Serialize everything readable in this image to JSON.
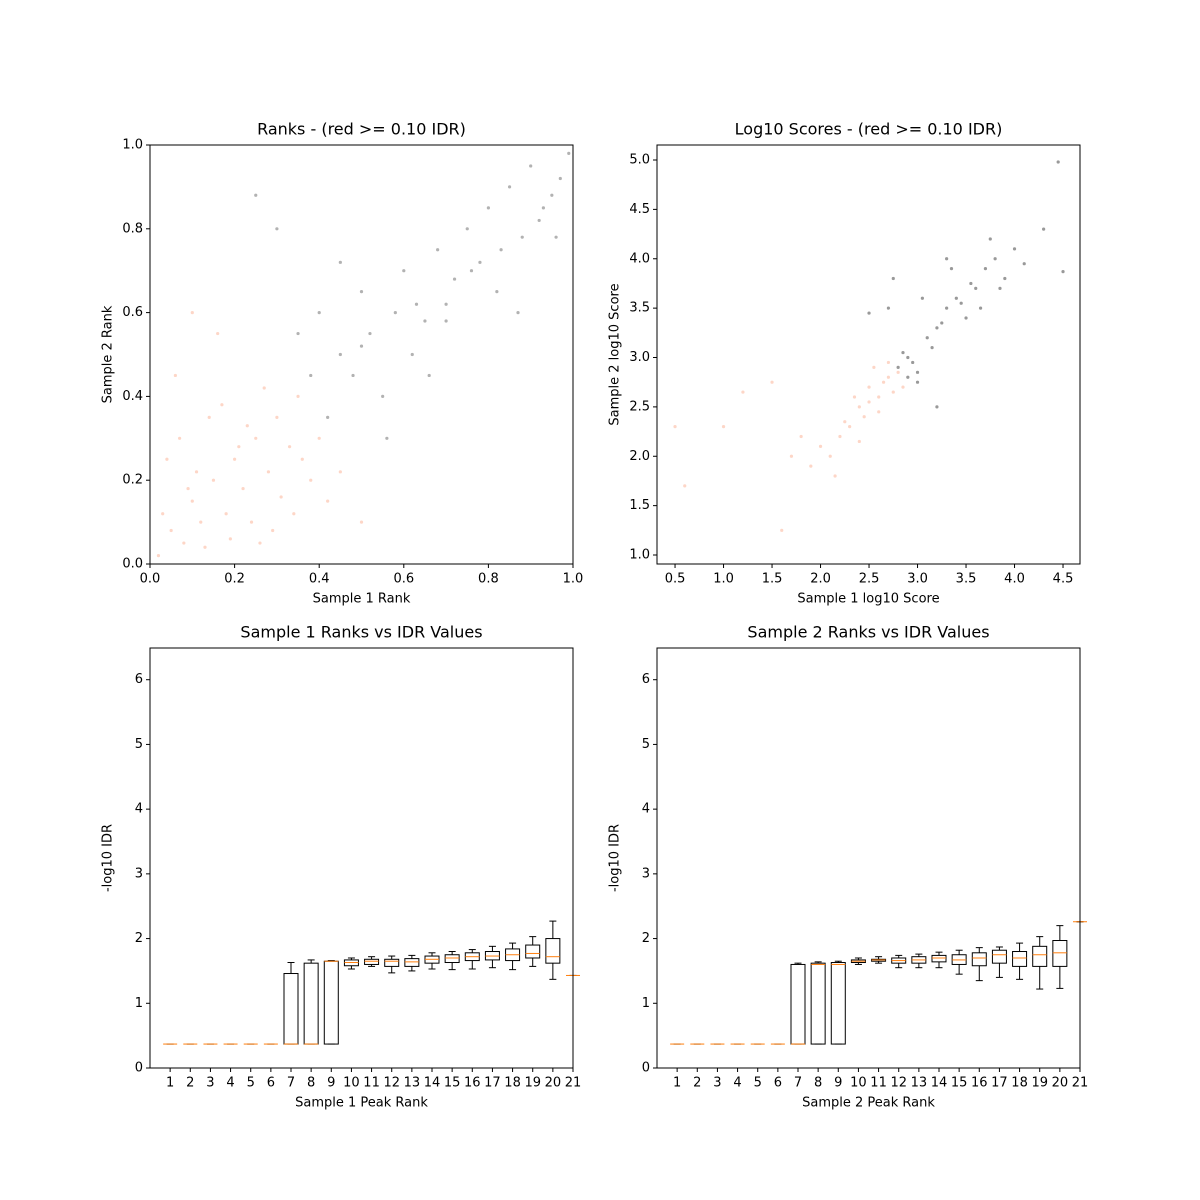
{
  "chart_data": [
    {
      "type": "scatter",
      "title": "Ranks - (red >= 0.10 IDR)",
      "x_label": "Sample 1 Rank",
      "y_label": "Sample 2 Rank",
      "xlim": [
        0,
        1
      ],
      "ylim": [
        0,
        1
      ],
      "xticks": [
        {
          "value": 0,
          "label": "0.0"
        },
        {
          "value": 0.2,
          "label": "0.2"
        },
        {
          "value": 0.4,
          "label": "0.4"
        },
        {
          "value": 0.6,
          "label": "0.6"
        },
        {
          "value": 0.8,
          "label": "0.8"
        },
        {
          "value": 1,
          "label": "1.0"
        }
      ],
      "yticks": [
        {
          "value": 0,
          "label": "0.0"
        },
        {
          "value": 0.2,
          "label": "0.2"
        },
        {
          "value": 0.4,
          "label": "0.4"
        },
        {
          "value": 0.6,
          "label": "0.6"
        },
        {
          "value": 0.8,
          "label": "0.8"
        },
        {
          "value": 1,
          "label": "1.0"
        }
      ],
      "series": [
        {
          "color": "#fcbba1",
          "x": [
            0.02,
            0.05,
            0.08,
            0.1,
            0.12,
            0.15,
            0.18,
            0.2,
            0.22,
            0.25,
            0.28,
            0.3,
            0.33,
            0.35,
            0.38,
            0.4,
            0.42,
            0.03,
            0.07,
            0.13,
            0.17,
            0.24,
            0.27,
            0.31,
            0.36,
            0.06,
            0.11,
            0.19,
            0.23,
            0.29,
            0.04,
            0.09,
            0.14,
            0.21,
            0.26,
            0.34,
            0.45,
            0.5,
            0.1,
            0.16
          ],
          "values": [
            0.02,
            0.08,
            0.05,
            0.15,
            0.1,
            0.2,
            0.12,
            0.25,
            0.18,
            0.3,
            0.22,
            0.35,
            0.28,
            0.4,
            0.2,
            0.3,
            0.15,
            0.12,
            0.3,
            0.04,
            0.38,
            0.1,
            0.42,
            0.16,
            0.25,
            0.45,
            0.22,
            0.06,
            0.33,
            0.08,
            0.25,
            0.18,
            0.35,
            0.28,
            0.05,
            0.12,
            0.22,
            0.1,
            0.6,
            0.55
          ]
        },
        {
          "color": "#7f7f7f",
          "x": [
            0.35,
            0.4,
            0.42,
            0.45,
            0.48,
            0.5,
            0.52,
            0.55,
            0.58,
            0.6,
            0.62,
            0.65,
            0.68,
            0.7,
            0.72,
            0.75,
            0.78,
            0.8,
            0.82,
            0.85,
            0.88,
            0.9,
            0.92,
            0.95,
            0.97,
            0.99,
            0.3,
            0.38,
            0.5,
            0.56,
            0.63,
            0.7,
            0.76,
            0.83,
            0.87,
            0.93,
            0.96,
            0.25,
            0.45,
            0.66
          ],
          "values": [
            0.55,
            0.6,
            0.35,
            0.5,
            0.45,
            0.65,
            0.55,
            0.4,
            0.6,
            0.7,
            0.5,
            0.58,
            0.75,
            0.62,
            0.68,
            0.8,
            0.72,
            0.85,
            0.65,
            0.9,
            0.78,
            0.95,
            0.82,
            0.88,
            0.92,
            0.98,
            0.8,
            0.45,
            0.52,
            0.3,
            0.62,
            0.58,
            0.7,
            0.75,
            0.6,
            0.85,
            0.78,
            0.88,
            0.72,
            0.45
          ]
        }
      ]
    },
    {
      "type": "scatter",
      "title": "Log10 Scores - (red >= 0.10 IDR)",
      "x_label": "Sample 1 log10 Score",
      "y_label": "Sample 2 log10 Score",
      "xlim": [
        0.314,
        4.675
      ],
      "ylim": [
        0.909,
        5.152
      ],
      "xticks": [
        0.5,
        {
          "value": 1,
          "label": "1.0"
        },
        1.5,
        {
          "value": 2,
          "label": "2.0"
        },
        2.5,
        {
          "value": 3,
          "label": "3.0"
        },
        3.5,
        {
          "value": 4,
          "label": "4.0"
        },
        4.5
      ],
      "yticks": [
        {
          "value": 1,
          "label": "1.0"
        },
        1.5,
        {
          "value": 2,
          "label": "2.0"
        },
        2.5,
        {
          "value": 3,
          "label": "3.0"
        },
        3.5,
        {
          "value": 4,
          "label": "4.0"
        },
        4.5,
        {
          "value": 5,
          "label": "5.0"
        }
      ],
      "series": [
        {
          "color": "#fcbba1",
          "x": [
            2.5,
            2.6,
            2.7,
            2.4,
            2.3,
            2.55,
            2.65,
            2.75,
            2.2,
            2.1,
            2.45,
            2.35,
            2.8,
            2.6,
            2.5,
            2.0,
            1.9,
            1.8,
            2.25,
            2.7,
            0.5,
            0.6,
            1.0,
            1.2,
            1.5,
            1.6,
            1.7,
            2.85,
            2.4,
            2.15
          ],
          "values": [
            2.7,
            2.6,
            2.8,
            2.5,
            2.3,
            2.9,
            2.75,
            2.65,
            2.2,
            2.0,
            2.4,
            2.6,
            2.85,
            2.45,
            2.55,
            2.1,
            1.9,
            2.2,
            2.35,
            2.95,
            2.3,
            1.7,
            2.3,
            2.65,
            2.75,
            1.25,
            2.0,
            2.7,
            2.15,
            1.8
          ]
        },
        {
          "color": "#555555",
          "x": [
            2.8,
            2.9,
            3.0,
            2.85,
            2.95,
            3.1,
            3.2,
            3.3,
            3.4,
            3.5,
            3.6,
            3.7,
            3.8,
            3.9,
            4.0,
            3.15,
            3.25,
            3.45,
            3.55,
            3.75,
            2.7,
            2.75,
            3.05,
            3.35,
            3.65,
            3.85,
            4.1,
            4.3,
            4.5,
            2.9,
            3.0,
            3.2,
            2.5,
            3.3,
            4.45
          ],
          "values": [
            2.9,
            3.0,
            2.85,
            3.05,
            2.95,
            3.2,
            3.3,
            3.5,
            3.6,
            3.4,
            3.7,
            3.9,
            4.0,
            3.8,
            4.1,
            3.1,
            3.35,
            3.55,
            3.75,
            4.2,
            3.5,
            3.8,
            3.6,
            3.9,
            3.5,
            3.7,
            3.95,
            4.3,
            3.87,
            2.8,
            2.75,
            2.5,
            3.45,
            4.0,
            4.98
          ]
        }
      ]
    },
    {
      "type": "box",
      "title": "Sample 1 Ranks vs IDR Values",
      "x_label": "Sample 1 Peak Rank",
      "y_label": "-log10 IDR",
      "xlim": [
        0,
        21
      ],
      "ylim": [
        0,
        6.49
      ],
      "xticks": [
        1,
        2,
        3,
        4,
        5,
        6,
        7,
        8,
        9,
        10,
        11,
        12,
        13,
        14,
        15,
        16,
        17,
        18,
        19,
        20,
        21
      ],
      "yticks": [
        0,
        1,
        2,
        3,
        4,
        5,
        6
      ],
      "x": [
        1,
        2,
        3,
        4,
        5,
        6,
        7,
        8,
        9,
        10,
        11,
        12,
        13,
        14,
        15,
        16,
        17,
        18,
        19,
        20,
        21
      ],
      "whisker_low": [
        0.37,
        0.37,
        0.37,
        0.37,
        0.37,
        0.37,
        0.37,
        0.37,
        0.37,
        1.53,
        1.57,
        1.47,
        1.5,
        1.53,
        1.52,
        1.53,
        1.55,
        1.52,
        1.57,
        1.37,
        1.43
      ],
      "q1": [
        0.37,
        0.37,
        0.37,
        0.37,
        0.37,
        0.37,
        0.37,
        0.37,
        0.37,
        1.58,
        1.6,
        1.57,
        1.57,
        1.62,
        1.63,
        1.66,
        1.67,
        1.66,
        1.7,
        1.62,
        1.43
      ],
      "median": [
        0.37,
        0.37,
        0.37,
        0.37,
        0.37,
        0.37,
        0.37,
        0.37,
        1.65,
        1.63,
        1.65,
        1.65,
        1.64,
        1.68,
        1.7,
        1.72,
        1.73,
        1.75,
        1.77,
        1.72,
        1.43
      ],
      "q3": [
        0.37,
        0.37,
        0.37,
        0.37,
        0.37,
        0.37,
        1.46,
        1.62,
        1.65,
        1.67,
        1.68,
        1.68,
        1.69,
        1.73,
        1.75,
        1.78,
        1.8,
        1.84,
        1.9,
        2.0,
        1.43
      ],
      "whisker_high": [
        0.37,
        0.37,
        0.37,
        0.37,
        0.37,
        0.37,
        1.63,
        1.67,
        1.66,
        1.7,
        1.72,
        1.73,
        1.74,
        1.78,
        1.8,
        1.83,
        1.88,
        1.93,
        2.03,
        2.27,
        1.43
      ]
    },
    {
      "type": "box",
      "title": "Sample 2 Ranks vs IDR Values",
      "x_label": "Sample 2 Peak Rank",
      "y_label": "-log10 IDR",
      "xlim": [
        0,
        21
      ],
      "ylim": [
        0,
        6.49
      ],
      "xticks": [
        1,
        2,
        3,
        4,
        5,
        6,
        7,
        8,
        9,
        10,
        11,
        12,
        13,
        14,
        15,
        16,
        17,
        18,
        19,
        20,
        21
      ],
      "yticks": [
        0,
        1,
        2,
        3,
        4,
        5,
        6
      ],
      "x": [
        1,
        2,
        3,
        4,
        5,
        6,
        7,
        8,
        9,
        10,
        11,
        12,
        13,
        14,
        15,
        16,
        17,
        18,
        19,
        20,
        21
      ],
      "whisker_low": [
        0.37,
        0.37,
        0.37,
        0.37,
        0.37,
        0.37,
        0.37,
        0.37,
        0.37,
        1.6,
        1.62,
        1.55,
        1.55,
        1.55,
        1.45,
        1.35,
        1.4,
        1.37,
        1.22,
        1.23,
        2.26
      ],
      "q1": [
        0.37,
        0.37,
        0.37,
        0.37,
        0.37,
        0.37,
        0.37,
        0.37,
        0.37,
        1.63,
        1.65,
        1.62,
        1.62,
        1.64,
        1.6,
        1.58,
        1.62,
        1.57,
        1.57,
        1.57,
        2.26
      ],
      "median": [
        0.37,
        0.37,
        0.37,
        0.37,
        0.37,
        0.37,
        0.37,
        1.6,
        1.6,
        1.65,
        1.67,
        1.66,
        1.67,
        1.7,
        1.67,
        1.7,
        1.75,
        1.7,
        1.75,
        1.78,
        2.26
      ],
      "q3": [
        0.37,
        0.37,
        0.37,
        0.37,
        0.37,
        0.37,
        1.6,
        1.62,
        1.63,
        1.67,
        1.68,
        1.7,
        1.72,
        1.74,
        1.75,
        1.78,
        1.82,
        1.8,
        1.88,
        1.97,
        2.26
      ],
      "whisker_high": [
        0.37,
        0.37,
        0.37,
        0.37,
        0.37,
        0.37,
        1.62,
        1.64,
        1.65,
        1.7,
        1.72,
        1.74,
        1.76,
        1.79,
        1.82,
        1.86,
        1.87,
        1.93,
        2.03,
        2.2,
        2.26
      ]
    }
  ]
}
